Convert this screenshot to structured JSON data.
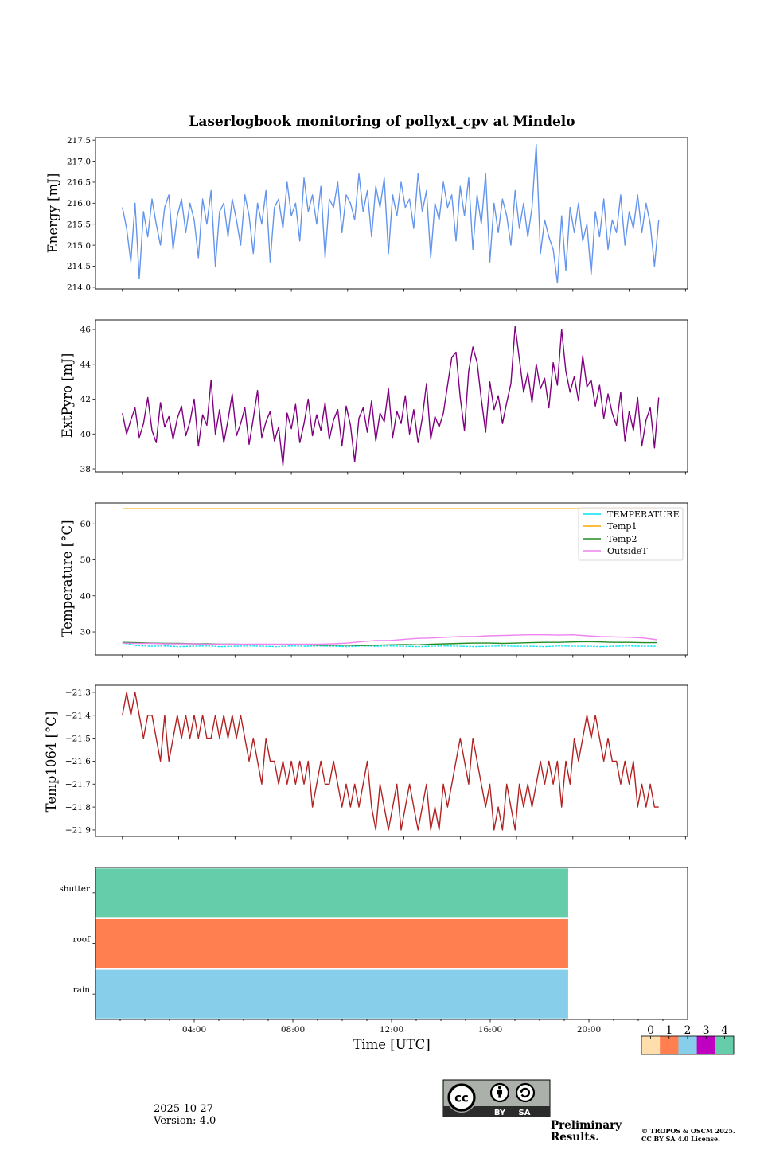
{
  "figure": {
    "title": "Laserlogbook monitoring of pollyxt_cpv at Mindelo",
    "xlabel": "Time [UTC]"
  },
  "chart_data": [
    {
      "type": "line",
      "id": "energy",
      "ylabel": "Energy [mJ]",
      "xlabel": "",
      "x_unit": "hours UTC",
      "xlim": [
        -0.956,
        20.076
      ],
      "xticks": [
        0,
        2,
        4,
        6,
        8,
        10,
        12,
        14,
        16,
        18,
        20
      ],
      "ylim": [
        213.96,
        217.56
      ],
      "yticks": [
        214.0,
        214.5,
        215.0,
        215.5,
        216.0,
        216.5,
        217.0,
        217.5
      ],
      "ytick_labels": [
        "214.0",
        "214.5",
        "215.0",
        "215.5",
        "216.0",
        "216.5",
        "217.0",
        "217.5"
      ],
      "grid": false,
      "series": [
        {
          "name": "Energy",
          "color": "#6495ed",
          "linestyle": "solid",
          "x_start": 0,
          "x_step": 0.15,
          "values": [
            215.9,
            215.4,
            214.6,
            216.0,
            214.2,
            215.8,
            215.2,
            216.1,
            215.5,
            215.0,
            215.9,
            216.2,
            214.9,
            215.7,
            216.1,
            215.3,
            216.0,
            215.6,
            214.7,
            216.1,
            215.5,
            216.3,
            214.5,
            215.8,
            216.0,
            215.2,
            216.1,
            215.6,
            215.0,
            216.2,
            215.7,
            214.8,
            216.0,
            215.5,
            216.3,
            214.6,
            215.9,
            216.1,
            215.4,
            216.5,
            215.7,
            216.0,
            215.1,
            216.6,
            215.8,
            216.2,
            215.5,
            216.4,
            214.7,
            216.1,
            215.9,
            216.5,
            215.3,
            216.2,
            216.0,
            215.6,
            216.7,
            215.8,
            216.3,
            215.2,
            216.4,
            215.9,
            216.6,
            214.8,
            216.2,
            215.7,
            216.5,
            215.9,
            216.1,
            215.4,
            216.7,
            215.8,
            216.3,
            214.7,
            216.0,
            215.6,
            216.5,
            215.9,
            216.2,
            215.1,
            216.4,
            215.7,
            216.6,
            214.9,
            216.2,
            215.5,
            216.7,
            214.6,
            216.0,
            215.3,
            216.1,
            215.7,
            215.0,
            216.3,
            215.4,
            216.0,
            215.2,
            215.9,
            217.4,
            214.8,
            215.6,
            215.2,
            214.9,
            214.1,
            215.7,
            214.4,
            215.9,
            215.3,
            216.0,
            215.1,
            215.5,
            214.3,
            215.8,
            215.2,
            216.1,
            214.9,
            215.6,
            215.3,
            216.2,
            215.0,
            215.8,
            215.4,
            216.2,
            215.3,
            216.0,
            215.5,
            214.5,
            215.6
          ]
        }
      ]
    },
    {
      "type": "line",
      "id": "extpyro",
      "ylabel": "ExtPyro [mJ]",
      "xlabel": "",
      "x_unit": "hours UTC",
      "xlim": [
        -0.956,
        20.076
      ],
      "xticks": [
        0,
        2,
        4,
        6,
        8,
        10,
        12,
        14,
        16,
        18,
        20
      ],
      "ylim": [
        37.82,
        46.55
      ],
      "yticks": [
        38,
        40,
        42,
        44,
        46
      ],
      "ytick_labels": [
        "38",
        "40",
        "42",
        "44",
        "46"
      ],
      "grid": false,
      "series": [
        {
          "name": "ExtPyro",
          "color": "#800080",
          "linestyle": "solid",
          "x_start": 0,
          "x_step": 0.15,
          "values": [
            41.2,
            40.0,
            40.8,
            41.5,
            39.8,
            40.6,
            42.1,
            40.2,
            39.5,
            41.8,
            40.4,
            41.0,
            39.7,
            40.9,
            41.6,
            39.9,
            40.7,
            42.0,
            39.3,
            41.1,
            40.5,
            43.1,
            40.0,
            41.4,
            39.5,
            40.8,
            42.3,
            39.9,
            40.6,
            41.5,
            39.4,
            40.9,
            42.5,
            39.8,
            40.7,
            41.3,
            39.6,
            40.4,
            38.2,
            41.2,
            40.3,
            41.7,
            39.5,
            40.6,
            42.0,
            39.9,
            41.1,
            40.2,
            41.8,
            39.7,
            40.8,
            41.4,
            39.3,
            41.6,
            40.5,
            38.4,
            40.9,
            41.5,
            40.1,
            41.9,
            39.6,
            41.2,
            40.7,
            42.6,
            39.8,
            41.3,
            40.6,
            42.2,
            40.0,
            41.4,
            39.5,
            40.9,
            42.9,
            39.7,
            41.0,
            40.4,
            41.2,
            42.8,
            44.4,
            44.7,
            42.1,
            40.2,
            43.6,
            45.0,
            44.1,
            42.0,
            40.1,
            43.0,
            41.4,
            42.2,
            40.6,
            41.8,
            42.9,
            46.2,
            44.3,
            42.4,
            43.5,
            41.8,
            44.0,
            42.6,
            43.2,
            41.5,
            44.1,
            42.8,
            46.0,
            43.6,
            42.4,
            43.3,
            41.9,
            44.5,
            42.7,
            43.1,
            41.6,
            42.8,
            40.9,
            42.3,
            41.2,
            40.5,
            42.4,
            39.6,
            41.3,
            40.2,
            42.1,
            39.3,
            40.8,
            41.5,
            39.2,
            42.1
          ]
        }
      ]
    },
    {
      "type": "line",
      "id": "temperature",
      "ylabel": "Temperature [°C]",
      "xlabel": "",
      "x_unit": "hours UTC",
      "xlim": [
        -0.956,
        20.076
      ],
      "xticks": [
        0,
        2,
        4,
        6,
        8,
        10,
        12,
        14,
        16,
        18,
        20
      ],
      "ylim": [
        23.6,
        65.8
      ],
      "yticks": [
        30,
        40,
        50,
        60
      ],
      "ytick_labels": [
        "30",
        "40",
        "50",
        "60"
      ],
      "grid": false,
      "legend": {
        "position": "top-right"
      },
      "series": [
        {
          "name": "TEMPERATURE",
          "color": "#00e5ee",
          "linestyle": "dotted",
          "x_start": 0,
          "x_step": 0.5,
          "values": [
            26.9,
            26.2,
            26.0,
            26.1,
            25.9,
            26.0,
            26.1,
            25.9,
            26.0,
            26.1,
            26.0,
            25.9,
            26.1,
            26.0,
            26.1,
            26.0,
            25.9,
            26.1,
            26.0,
            26.1,
            26.0,
            25.9,
            26.0,
            26.1,
            26.0,
            25.9,
            26.0,
            26.1,
            26.0,
            26.0,
            25.9,
            26.1,
            26.0,
            26.0,
            25.9,
            26.0,
            26.1,
            26.0,
            26.0
          ]
        },
        {
          "name": "Temp1",
          "color": "#ffa500",
          "linestyle": "solid",
          "x_start": 0,
          "x_step": 19.05,
          "values": [
            64.2,
            64.2
          ]
        },
        {
          "name": "Temp2",
          "color": "#228b22",
          "linestyle": "solid",
          "x_start": 0,
          "x_step": 0.5,
          "values": [
            27.1,
            27.0,
            26.9,
            26.8,
            26.8,
            26.7,
            26.7,
            26.6,
            26.6,
            26.5,
            26.5,
            26.4,
            26.4,
            26.4,
            26.3,
            26.3,
            26.3,
            26.2,
            26.3,
            26.4,
            26.5,
            26.4,
            26.6,
            26.7,
            26.8,
            26.9,
            26.9,
            26.8,
            26.9,
            27.0,
            27.1,
            27.1,
            27.2,
            27.3,
            27.2,
            27.1,
            27.1,
            27.0,
            27.0
          ]
        },
        {
          "name": "OutsideT",
          "color": "#ee82ee",
          "linestyle": "solid",
          "x_start": 0,
          "x_step": 0.5,
          "values": [
            26.9,
            26.8,
            26.8,
            26.7,
            26.7,
            26.7,
            26.6,
            26.6,
            26.6,
            26.6,
            26.6,
            26.6,
            26.6,
            26.6,
            26.6,
            26.7,
            26.9,
            27.3,
            27.6,
            27.6,
            27.9,
            28.2,
            28.3,
            28.5,
            28.7,
            28.7,
            28.9,
            29.0,
            29.1,
            29.2,
            29.2,
            29.1,
            29.2,
            28.9,
            28.7,
            28.6,
            28.5,
            28.3,
            27.8
          ]
        }
      ]
    },
    {
      "type": "line",
      "id": "temp1064",
      "ylabel": "Temp1064 [°C]",
      "xlabel": "",
      "x_unit": "hours UTC",
      "xlim": [
        -0.956,
        20.076
      ],
      "xticks": [
        0,
        2,
        4,
        6,
        8,
        10,
        12,
        14,
        16,
        18,
        20
      ],
      "ylim": [
        -21.928,
        -21.269
      ],
      "yticks": [
        -21.9,
        -21.8,
        -21.7,
        -21.6,
        -21.5,
        -21.4,
        -21.3
      ],
      "ytick_labels": [
        "−21.9",
        "−21.8",
        "−21.7",
        "−21.6",
        "−21.5",
        "−21.4",
        "−21.3"
      ],
      "grid": false,
      "series": [
        {
          "name": "Temp1064",
          "color": "#b22222",
          "linestyle": "solid",
          "x_start": 0,
          "x_step": 0.15,
          "values": [
            -21.4,
            -21.3,
            -21.4,
            -21.3,
            -21.4,
            -21.5,
            -21.4,
            -21.4,
            -21.5,
            -21.6,
            -21.4,
            -21.6,
            -21.5,
            -21.4,
            -21.5,
            -21.4,
            -21.5,
            -21.4,
            -21.5,
            -21.4,
            -21.5,
            -21.5,
            -21.4,
            -21.5,
            -21.4,
            -21.5,
            -21.4,
            -21.5,
            -21.4,
            -21.5,
            -21.6,
            -21.5,
            -21.6,
            -21.7,
            -21.5,
            -21.6,
            -21.6,
            -21.7,
            -21.6,
            -21.7,
            -21.6,
            -21.7,
            -21.6,
            -21.7,
            -21.6,
            -21.8,
            -21.7,
            -21.6,
            -21.7,
            -21.7,
            -21.6,
            -21.7,
            -21.8,
            -21.7,
            -21.8,
            -21.7,
            -21.8,
            -21.7,
            -21.6,
            -21.8,
            -21.9,
            -21.7,
            -21.8,
            -21.9,
            -21.8,
            -21.7,
            -21.9,
            -21.8,
            -21.7,
            -21.8,
            -21.9,
            -21.8,
            -21.7,
            -21.9,
            -21.8,
            -21.9,
            -21.7,
            -21.8,
            -21.7,
            -21.6,
            -21.5,
            -21.6,
            -21.7,
            -21.5,
            -21.6,
            -21.7,
            -21.8,
            -21.7,
            -21.9,
            -21.8,
            -21.9,
            -21.7,
            -21.8,
            -21.9,
            -21.7,
            -21.8,
            -21.7,
            -21.8,
            -21.7,
            -21.6,
            -21.7,
            -21.6,
            -21.7,
            -21.6,
            -21.8,
            -21.6,
            -21.7,
            -21.5,
            -21.6,
            -21.5,
            -21.4,
            -21.5,
            -21.4,
            -21.5,
            -21.6,
            -21.5,
            -21.6,
            -21.6,
            -21.7,
            -21.6,
            -21.7,
            -21.6,
            -21.8,
            -21.7,
            -21.8,
            -21.7,
            -21.8,
            -21.8
          ]
        }
      ]
    },
    {
      "type": "heatmap",
      "id": "status",
      "ylabel": "",
      "xlabel": "Time [UTC]",
      "x_unit": "hours UTC",
      "xlim": [
        0,
        24
      ],
      "xticks": [
        4,
        8,
        12,
        16,
        20
      ],
      "xtick_labels": [
        "04:00",
        "08:00",
        "12:00",
        "16:00",
        "20:00"
      ],
      "xticks_minor": [
        1,
        2,
        3,
        5,
        6,
        7,
        9,
        10,
        11,
        13,
        14,
        15,
        17,
        18,
        19,
        21,
        22,
        23
      ],
      "rows": [
        {
          "label": "shutter",
          "value": 4,
          "start": 0,
          "end": 19.16
        },
        {
          "label": "roof",
          "value": 1,
          "start": 0,
          "end": 19.16
        },
        {
          "label": "rain",
          "value": 2,
          "start": 0,
          "end": 19.16
        }
      ],
      "colorbar": {
        "tick_labels": [
          "0",
          "1",
          "2",
          "3",
          "4"
        ],
        "colors": [
          "#ffdead",
          "#ff7f50",
          "#87ceeb",
          "#c000c0",
          "#66cdaa"
        ]
      }
    }
  ],
  "footer": {
    "date": "2025-10-27",
    "version": "Version: 4.0",
    "license_badge": {
      "cc": "cc",
      "by": "BY",
      "sa": "SA"
    },
    "preliminary": [
      "Preliminary",
      "Results."
    ],
    "preliminary_color": "#ee3333",
    "copyright": [
      "© TROPOS & OSCM 2025.",
      "CC BY SA 4.0 License."
    ]
  }
}
